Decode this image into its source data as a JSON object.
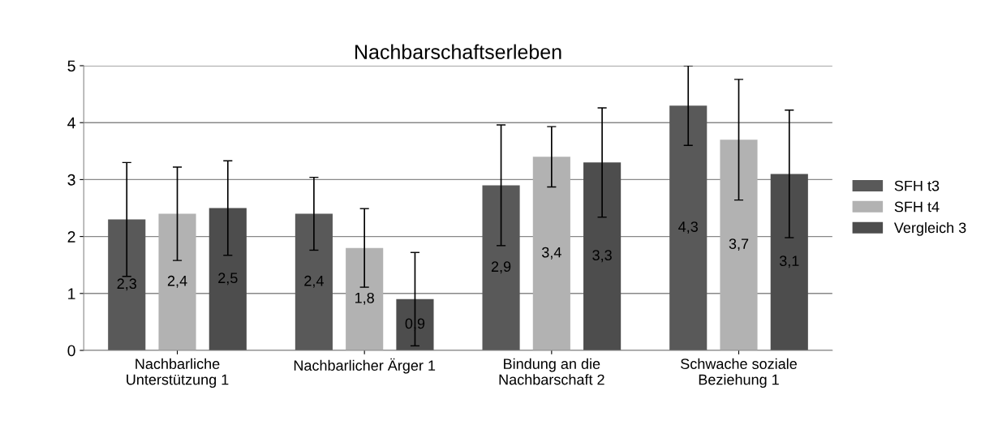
{
  "chart_data": {
    "type": "bar",
    "title": "Nachbarschaftserleben",
    "categories": [
      "Nachbarliche\nUnterstützung 1",
      "Nachbarlicher Ärger 1",
      "Bindung an die\nNachbarschaft 2",
      "Schwache soziale\nBeziehung 1"
    ],
    "series": [
      {
        "name": "SFH t3",
        "color": "#595959",
        "values": [
          2.3,
          2.4,
          2.9,
          4.3
        ],
        "errors": [
          1.0,
          0.64,
          1.06,
          0.7
        ],
        "value_labels": [
          "2,3",
          "2,4",
          "2,9",
          "4,3"
        ]
      },
      {
        "name": "SFH t4",
        "color": "#b2b2b2",
        "values": [
          2.4,
          1.8,
          3.4,
          3.7
        ],
        "errors": [
          0.82,
          0.69,
          0.53,
          1.06
        ],
        "value_labels": [
          "2,4",
          "1,8",
          "3,4",
          "3,7"
        ]
      },
      {
        "name": "Vergleich 3",
        "color": "#4d4d4d",
        "values": [
          2.5,
          0.9,
          3.3,
          3.1
        ],
        "errors": [
          0.83,
          0.82,
          0.96,
          1.12
        ],
        "value_labels": [
          "2,5",
          "0,9",
          "3,3",
          "3,1"
        ]
      }
    ],
    "ylim": [
      0,
      5
    ],
    "yticks": [
      0,
      1,
      2,
      3,
      4,
      5
    ],
    "grid": "y",
    "legend": "right"
  }
}
